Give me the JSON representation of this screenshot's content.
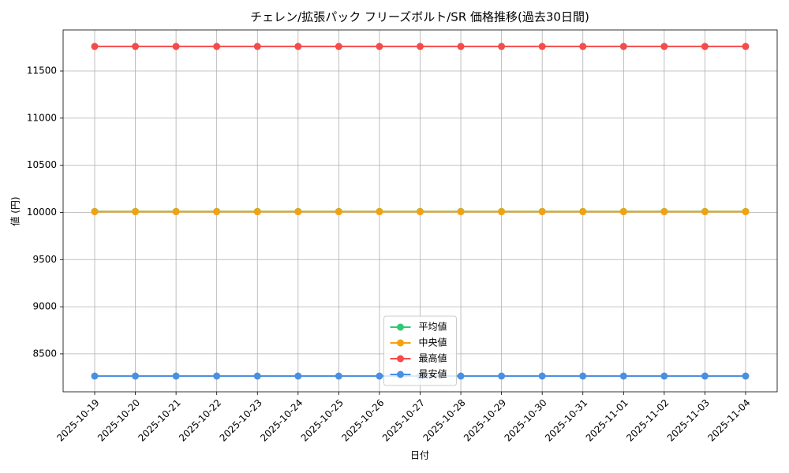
{
  "chart_data": {
    "type": "line",
    "title": "チェレン/拡張パック フリーズボルト/SR 価格推移(過去30日間)",
    "xlabel": "日付",
    "ylabel": "値 (円)",
    "x": [
      "2025-10-19",
      "2025-10-20",
      "2025-10-21",
      "2025-10-22",
      "2025-10-23",
      "2025-10-24",
      "2025-10-25",
      "2025-10-26",
      "2025-10-27",
      "2025-10-28",
      "2025-10-29",
      "2025-10-30",
      "2025-10-31",
      "2025-11-01",
      "2025-11-02",
      "2025-11-03",
      "2025-11-04"
    ],
    "series": [
      {
        "name": "平均値",
        "color": "#2ecc71",
        "values": [
          10010,
          10010,
          10010,
          10010,
          10010,
          10010,
          10010,
          10010,
          10010,
          10010,
          10010,
          10010,
          10010,
          10010,
          10010,
          10010,
          10010
        ]
      },
      {
        "name": "中央値",
        "color": "#f5a10f",
        "values": [
          10008,
          10008,
          10008,
          10008,
          10008,
          10008,
          10008,
          10008,
          10008,
          10008,
          10008,
          10008,
          10008,
          10008,
          10008,
          10008,
          10008
        ]
      },
      {
        "name": "最高値",
        "color": "#f44b4b",
        "values": [
          11760,
          11760,
          11760,
          11760,
          11760,
          11760,
          11760,
          11760,
          11760,
          11760,
          11760,
          11760,
          11760,
          11760,
          11760,
          11760,
          11760
        ]
      },
      {
        "name": "最安値",
        "color": "#4a90e2",
        "values": [
          8265,
          8265,
          8265,
          8265,
          8265,
          8265,
          8265,
          8265,
          8265,
          8265,
          8265,
          8265,
          8265,
          8265,
          8265,
          8265,
          8265
        ]
      }
    ],
    "ylim": [
      8098,
      11935
    ],
    "yticks": [
      8500,
      9000,
      9500,
      10000,
      10500,
      11000,
      11500
    ],
    "grid": true,
    "legend": "lower center"
  }
}
